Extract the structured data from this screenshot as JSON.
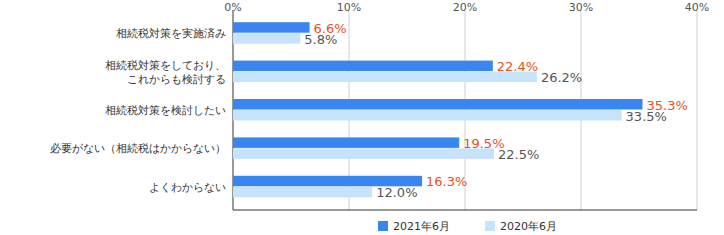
{
  "chart_data": {
    "type": "bar",
    "orientation": "horizontal",
    "categories": [
      "相続税対策を実施済み",
      "相続税対策をしており、\nこれからも検討する",
      "相続税対策を検討したい",
      "必要がない（相続税はかからない）",
      "よくわからない"
    ],
    "series": [
      {
        "name": "2021年6月",
        "color": "#3a86f0",
        "values": [
          6.6,
          22.4,
          35.3,
          19.5,
          16.3
        ],
        "value_labels": [
          "6.6%",
          "22.4%",
          "35.3%",
          "19.5%",
          "16.3%"
        ]
      },
      {
        "name": "2020年6月",
        "color": "#c7e3fb",
        "values": [
          5.8,
          26.2,
          33.5,
          22.5,
          12.0
        ],
        "value_labels": [
          "5.8%",
          "26.2%",
          "33.5%",
          "22.5%",
          "12.0%"
        ]
      }
    ],
    "xlim": [
      0,
      40
    ],
    "xticks": [
      {
        "value": 0,
        "label": "0%"
      },
      {
        "value": 10,
        "label": "10%"
      },
      {
        "value": 20,
        "label": "20%"
      },
      {
        "value": 30,
        "label": "30%"
      },
      {
        "value": 40,
        "label": "40%"
      }
    ],
    "grid": true,
    "data_labels": true,
    "legend": "bottom"
  }
}
